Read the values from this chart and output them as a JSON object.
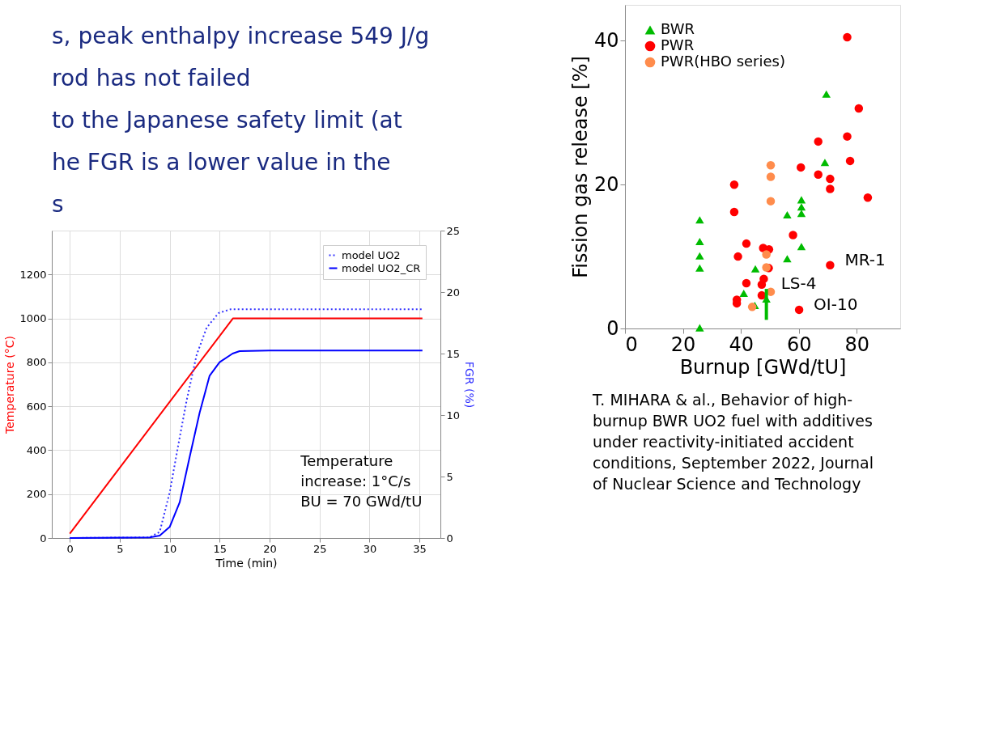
{
  "chart_data": [
    {
      "type": "other",
      "annotations": [
        "s, peak enthalpy increase 549 J/g",
        " rod has not failed",
        "to the Japanese safety limit (at",
        "he FGR is a lower value in the",
        "s"
      ]
    },
    {
      "type": "scatter",
      "xlabel": "Burnup [GWd/tU]",
      "ylabel": "Fission gas release [%]",
      "xlim": [
        0,
        95
      ],
      "ylim": [
        0,
        45
      ],
      "xticks": [
        0,
        20,
        40,
        60,
        80
      ],
      "yticks": [
        0,
        20,
        40
      ],
      "legend": "top left",
      "grid": false,
      "series": [
        {
          "name": "BWR",
          "color": "#00bb00",
          "marker": "triangle",
          "x": [
            25.8,
            25.8,
            25.8,
            25.8,
            25.8,
            41,
            45,
            44.8,
            48.8,
            56,
            56,
            60.9,
            60.9,
            60.9,
            60.9,
            69,
            69.5
          ],
          "values": [
            15.1,
            12.1,
            10.1,
            8.4,
            0.1,
            4.9,
            8.3,
            3.2,
            4.1,
            15.8,
            9.7,
            17.9,
            16.9,
            16.0,
            11.4,
            23.1,
            32.6
          ],
          "errors": [
            null,
            null,
            null,
            null,
            null,
            null,
            null,
            null,
            [
              1.2,
              5.5
            ],
            null,
            null,
            null,
            null,
            null,
            null,
            null,
            null
          ]
        },
        {
          "name": "PWR",
          "color": "#ff0000",
          "marker": "circle",
          "x": [
            37.7,
            37.7,
            41.9,
            39,
            38.6,
            38.6,
            41.9,
            47.7,
            49.7,
            49.6,
            47.9,
            47.2,
            47.2,
            58,
            60.7,
            60.1,
            66.7,
            66.7,
            70.8,
            70.8,
            70.8,
            76.7,
            76.7,
            77.7,
            80.7,
            83.8
          ],
          "values": [
            20.0,
            16.2,
            11.8,
            10.0,
            4.0,
            3.5,
            6.3,
            11.2,
            11.0,
            8.4,
            6.9,
            6.1,
            4.6,
            13.0,
            22.4,
            2.6,
            26.0,
            21.4,
            20.8,
            19.4,
            8.8,
            40.5,
            26.7,
            23.3,
            30.6,
            18.2
          ]
        },
        {
          "name": "PWR(HBO series)",
          "color": "#ff8c4c",
          "marker": "circle",
          "x": [
            50.3,
            50.3,
            50.3,
            48.8,
            48.8,
            50.3,
            43.9
          ],
          "values": [
            22.7,
            21.1,
            17.7,
            10.3,
            8.5,
            5.1,
            3.0
          ]
        }
      ],
      "annotations": [
        {
          "text": "MR-1",
          "x": 70.8,
          "y": 8.8
        },
        {
          "text": "LS-4",
          "x": 48.8,
          "y": 5.5
        },
        {
          "text": "OI-10",
          "x": 60.1,
          "y": 2.6
        },
        "T. MIHARA & al., Behavior of high-burnup BWR UO2 fuel with additives under reactivity-initiated accident conditions, September 2022, Journal of Nuclear Science and Technology"
      ]
    },
    {
      "type": "line",
      "xlabel": "Time (min)",
      "ylabel": "Temperature (°C)",
      "y2label": "FGR (%)",
      "xlim": [
        -1.8,
        37.1
      ],
      "xticks": [
        0,
        5,
        10,
        15,
        20,
        25,
        30,
        35
      ],
      "ylim": [
        0,
        1400
      ],
      "yticks": [
        0,
        200,
        400,
        600,
        800,
        1000,
        1200
      ],
      "y2lim": [
        0,
        25
      ],
      "y2ticks": [
        0,
        5,
        10,
        15,
        20,
        25
      ],
      "grid": true,
      "legend": "top right",
      "marker": "none",
      "series": [
        {
          "color": "#ff0000",
          "line_style": "solid",
          "x": [
            0,
            16.33,
            35.3
          ],
          "values": [
            20,
            1000,
            1000
          ]
        },
        {
          "name": "model UO2",
          "axis": "y2",
          "color": "#3333ff",
          "line_style": "dotted",
          "x": [
            0,
            8,
            9,
            10,
            10.8,
            11.7,
            12.7,
            13.7,
            14.9,
            16.1,
            35.3
          ],
          "values": [
            0,
            0.05,
            0.5,
            3.7,
            7.3,
            11.2,
            14.9,
            17.1,
            18.3,
            18.6,
            18.6
          ]
        },
        {
          "name": "model UO2_CR",
          "axis": "y2",
          "color": "#0000ff",
          "line_style": "solid",
          "x": [
            0,
            8,
            9,
            10,
            11,
            12,
            13,
            14,
            15,
            16.3,
            17,
            20,
            35.3
          ],
          "values": [
            0,
            0.05,
            0.2,
            0.9,
            2.9,
            6.6,
            10.2,
            13.2,
            14.3,
            15.0,
            15.2,
            15.25,
            15.25
          ]
        }
      ],
      "annotations": [
        "Temperature\nincrease: 1°C/s\nBU = 70 GWd/tU"
      ]
    }
  ]
}
